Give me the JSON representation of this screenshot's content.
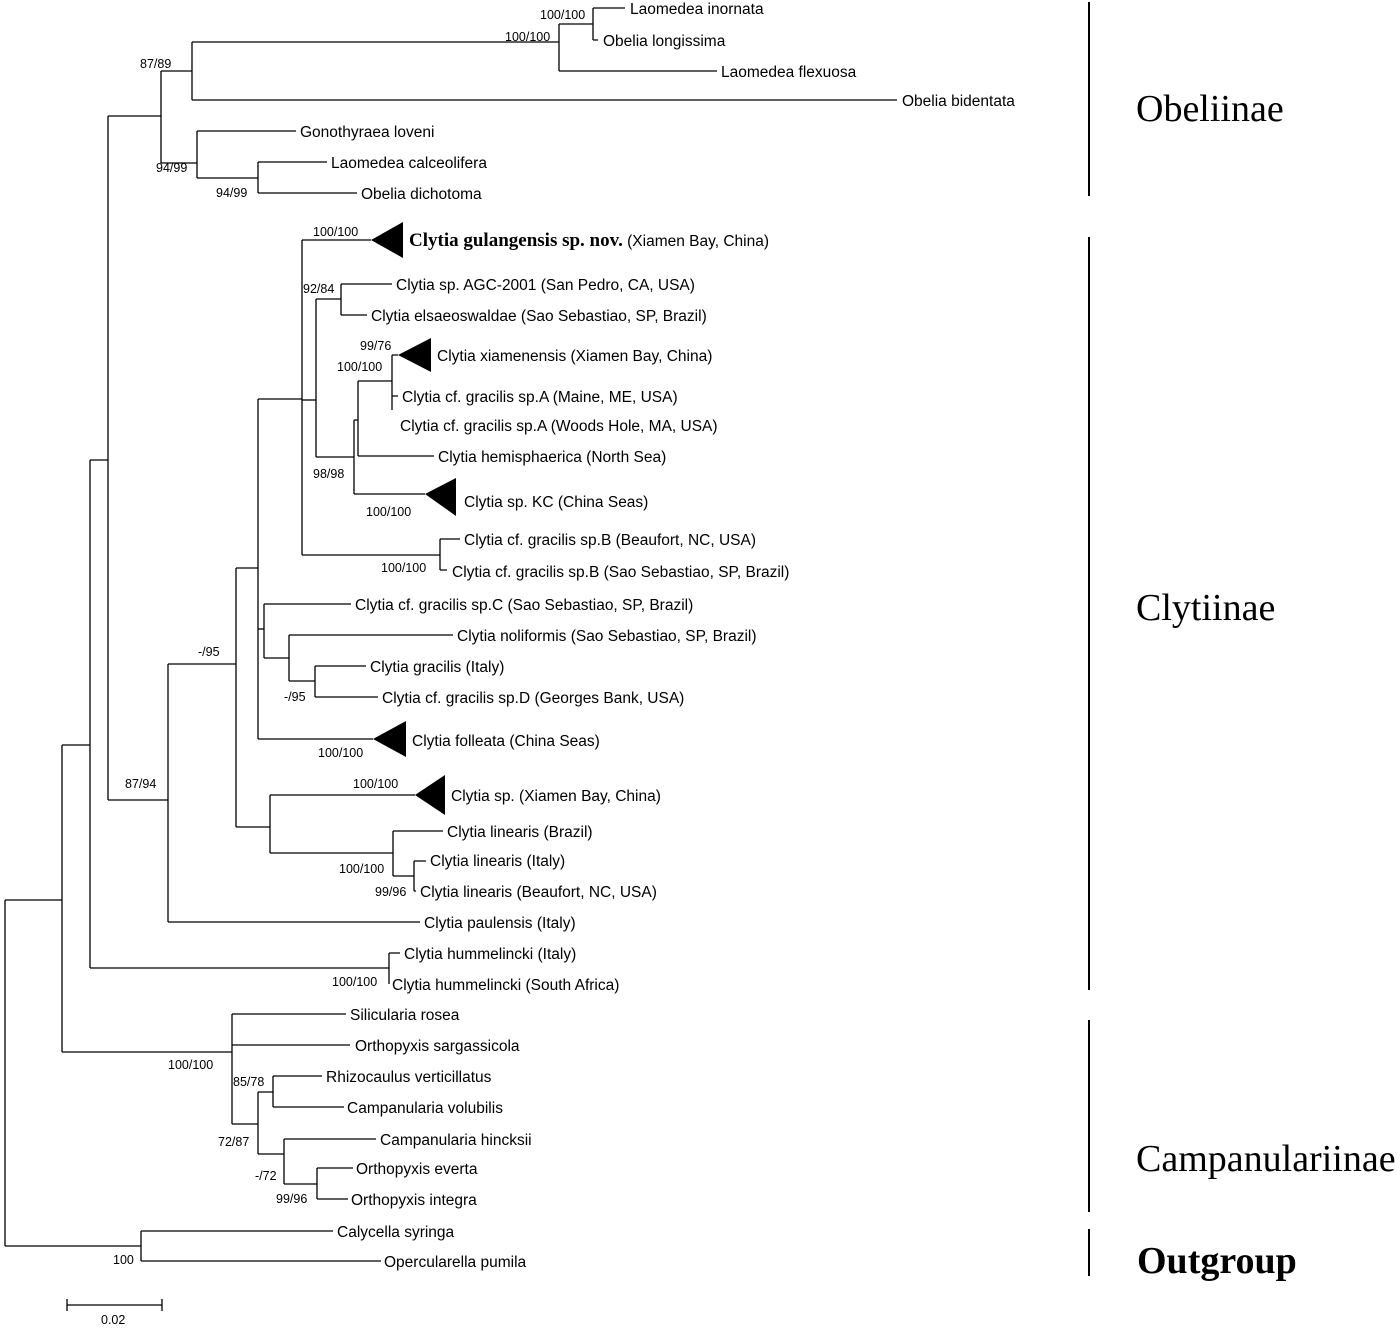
{
  "taxa": [
    {
      "id": "t_lin",
      "name": "Laomedea inornata"
    },
    {
      "id": "t_olo",
      "name": "Obelia longissima"
    },
    {
      "id": "t_lfl",
      "name": "Laomedea flexuosa"
    },
    {
      "id": "t_obi",
      "name": "Obelia bidentata"
    },
    {
      "id": "t_glo",
      "name": "Gonothyraea loveni"
    },
    {
      "id": "t_lca",
      "name": "Laomedea calceolifera"
    },
    {
      "id": "t_odi",
      "name": "Obelia dichotoma"
    },
    {
      "id": "t_cgu",
      "name": "Clytia gulangensis sp. nov.",
      "extra": " (Xiamen Bay, China)",
      "bold": true
    },
    {
      "id": "t_csp_agc",
      "name": "Clytia sp. AGC-2001 (San Pedro, CA, USA)"
    },
    {
      "id": "t_cel",
      "name": "Clytia elsaeoswaldae (Sao Sebastiao, SP, Brazil)"
    },
    {
      "id": "t_cxi",
      "name": "Clytia xiamenensis (Xiamen Bay, China)"
    },
    {
      "id": "t_cgA1",
      "name": "Clytia cf. gracilis sp.A (Maine, ME, USA)"
    },
    {
      "id": "t_cgA2",
      "name": "Clytia cf. gracilis sp.A (Woods Hole, MA, USA)"
    },
    {
      "id": "t_che",
      "name": "Clytia hemisphaerica (North Sea)"
    },
    {
      "id": "t_ckc",
      "name": "Clytia sp. KC (China Seas)"
    },
    {
      "id": "t_cgB1",
      "name": "Clytia cf. gracilis sp.B (Beaufort, NC, USA)"
    },
    {
      "id": "t_cgB2",
      "name": "Clytia cf. gracilis sp.B (Sao Sebastiao, SP, Brazil)"
    },
    {
      "id": "t_cgC",
      "name": "Clytia cf. gracilis sp.C (Sao Sebastiao, SP, Brazil)"
    },
    {
      "id": "t_cno",
      "name": "Clytia noliformis (Sao Sebastiao, SP, Brazil)"
    },
    {
      "id": "t_cgi",
      "name": "Clytia gracilis (Italy)"
    },
    {
      "id": "t_cgD",
      "name": "Clytia cf. gracilis sp.D (Georges Bank, USA)"
    },
    {
      "id": "t_cfo",
      "name": "Clytia folleata (China Seas)"
    },
    {
      "id": "t_csx",
      "name": "Clytia sp. (Xiamen Bay, China)"
    },
    {
      "id": "t_cl1",
      "name": "Clytia linearis (Brazil)"
    },
    {
      "id": "t_cl2",
      "name": "Clytia linearis (Italy)"
    },
    {
      "id": "t_cl3",
      "name": "Clytia linearis (Beaufort, NC, USA)"
    },
    {
      "id": "t_cpa",
      "name": "Clytia paulensis (Italy)"
    },
    {
      "id": "t_ch1",
      "name": "Clytia hummelincki (Italy)"
    },
    {
      "id": "t_ch2",
      "name": "Clytia hummelincki (South Africa)"
    },
    {
      "id": "t_sro",
      "name": "Silicularia rosea"
    },
    {
      "id": "t_osa",
      "name": "Orthopyxis sargassicola"
    },
    {
      "id": "t_rve",
      "name": "Rhizocaulus verticillatus"
    },
    {
      "id": "t_cvo",
      "name": "Campanularia volubilis"
    },
    {
      "id": "t_chi",
      "name": "Campanularia hincksii"
    },
    {
      "id": "t_oev",
      "name": "Orthopyxis everta"
    },
    {
      "id": "t_oin",
      "name": "Orthopyxis integra"
    },
    {
      "id": "t_csy",
      "name": "Calycella syringa"
    },
    {
      "id": "t_opu",
      "name": "Opercularella pumila"
    }
  ],
  "support": [
    "100/100",
    "100/100",
    "87/89",
    "94/99",
    "94/99",
    "100/100",
    "92/84",
    "99/76",
    "100/100",
    "98/98",
    "100/100",
    "100/100",
    "-/95",
    "100/100",
    "100/100",
    "100/100",
    "99/96",
    "-/95",
    "87/94",
    "100/100",
    "100/100",
    "85/78",
    "72/87",
    "-/72",
    "99/96",
    "100"
  ],
  "groups": [
    {
      "id": "g_obe",
      "name": "Obeliinae"
    },
    {
      "id": "g_cly",
      "name": "Clytiinae"
    },
    {
      "id": "g_cam",
      "name": "Campanulariinae"
    },
    {
      "id": "g_out",
      "name": "Outgroup",
      "bold": true
    }
  ],
  "scale_bar": {
    "label": "0.02",
    "value": 0.02
  }
}
